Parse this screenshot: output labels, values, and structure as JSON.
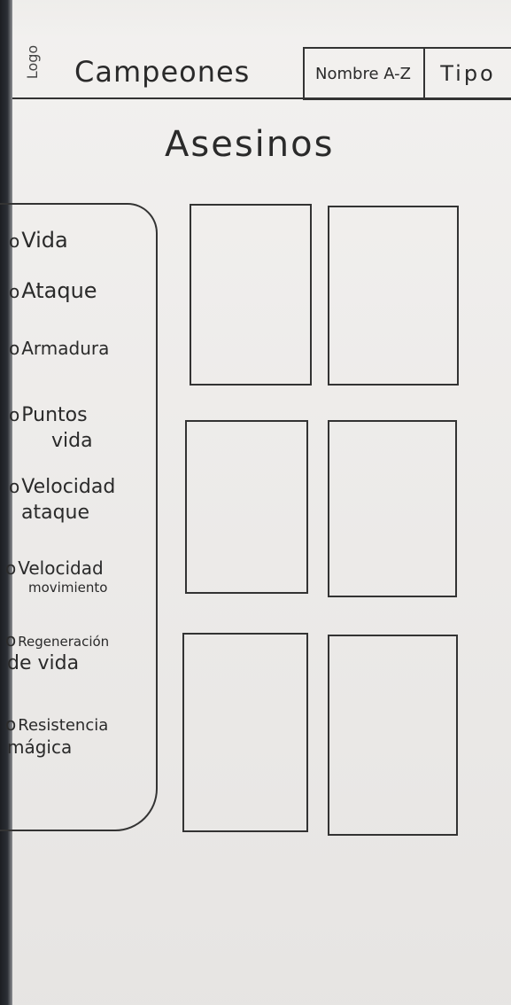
{
  "header": {
    "logo": "Logo",
    "title": "Campeones",
    "sort_name": "Nombre A-Z",
    "sort_type": "Tipo"
  },
  "page": {
    "title": "Asesinos"
  },
  "sidebar": {
    "filters": [
      {
        "bullet": "o",
        "line1": "Vida",
        "line2": ""
      },
      {
        "bullet": "o",
        "line1": "Ataque",
        "line2": ""
      },
      {
        "bullet": "o",
        "line1": "Armadura",
        "line2": ""
      },
      {
        "bullet": "o",
        "line1": "Puntos",
        "line2": "vida"
      },
      {
        "bullet": "o",
        "line1": "Velocidad",
        "line2": "ataque"
      },
      {
        "bullet": "o",
        "line1": "Velocidad",
        "line2": "movimiento"
      },
      {
        "bullet": "o",
        "line1": "Regeneración",
        "line2": "de vida"
      },
      {
        "bullet": "o",
        "line1": "Resistencia",
        "line2": "mágica"
      }
    ]
  }
}
